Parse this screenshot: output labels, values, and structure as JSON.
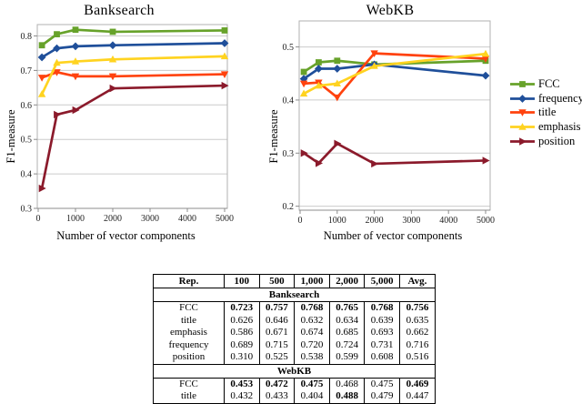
{
  "chart_data": [
    {
      "type": "line",
      "title": "Banksearch",
      "ylabel": "F1-measure",
      "xlabel": "Number of vector components",
      "x": [
        100,
        500,
        1000,
        2000,
        5000
      ],
      "xticks": [
        0,
        1000,
        2000,
        3000,
        4000,
        5000
      ],
      "yticks": [
        0.3,
        0.4,
        0.5,
        0.6,
        0.7,
        0.8
      ],
      "xlim": [
        0,
        5000
      ],
      "ylim": [
        0.3,
        0.833
      ],
      "grid": "horizontal",
      "series": [
        {
          "name": "FCC",
          "color": "#67a22a",
          "marker": "square",
          "values": [
            0.773,
            0.805,
            0.818,
            0.812,
            0.816
          ]
        },
        {
          "name": "frequency",
          "color": "#1f4f9a",
          "marker": "diamond",
          "values": [
            0.738,
            0.764,
            0.77,
            0.773,
            0.779
          ]
        },
        {
          "name": "title",
          "color": "#ff420e",
          "marker": "triangle-down",
          "values": [
            0.679,
            0.695,
            0.683,
            0.683,
            0.689
          ]
        },
        {
          "name": "emphasis",
          "color": "#ffd320",
          "marker": "triangle-up",
          "values": [
            0.631,
            0.722,
            0.726,
            0.732,
            0.741
          ]
        },
        {
          "name": "position",
          "color": "#8b1a2b",
          "marker": "triangle-right",
          "values": [
            0.358,
            0.572,
            0.585,
            0.648,
            0.656
          ]
        }
      ]
    },
    {
      "type": "line",
      "title": "WebKB",
      "ylabel": "F1-measure",
      "xlabel": "Number of vector components",
      "x": [
        100,
        500,
        1000,
        2000,
        5000
      ],
      "xticks": [
        0,
        1000,
        2000,
        3000,
        4000,
        5000
      ],
      "yticks": [
        0.2,
        0.3,
        0.4,
        0.5
      ],
      "xlim": [
        0,
        5000
      ],
      "ylim": [
        0.1925,
        0.549
      ],
      "grid": "horizontal",
      "series": [
        {
          "name": "FCC",
          "color": "#67a22a",
          "marker": "square",
          "values": [
            0.453,
            0.471,
            0.474,
            0.467,
            0.474
          ]
        },
        {
          "name": "frequency",
          "color": "#1f4f9a",
          "marker": "diamond",
          "values": [
            0.44,
            0.459,
            0.459,
            0.467,
            0.446
          ]
        },
        {
          "name": "title",
          "color": "#ff420e",
          "marker": "triangle-down",
          "values": [
            0.431,
            0.433,
            0.405,
            0.488,
            0.478
          ]
        },
        {
          "name": "emphasis",
          "color": "#ffd320",
          "marker": "triangle-up",
          "values": [
            0.412,
            0.427,
            0.431,
            0.464,
            0.487
          ]
        },
        {
          "name": "position",
          "color": "#8b1a2b",
          "marker": "triangle-right",
          "values": [
            0.3,
            0.281,
            0.318,
            0.28,
            0.286
          ]
        }
      ]
    }
  ],
  "legend": {
    "position": "right",
    "items": [
      "FCC",
      "frequency",
      "title",
      "emphasis",
      "position"
    ]
  },
  "table": {
    "columns": [
      "Rep.",
      "100",
      "500",
      "1,000",
      "2,000",
      "5,000",
      "Avg."
    ],
    "sections": [
      {
        "title": "Banksearch",
        "rows": [
          {
            "label": "FCC",
            "values": [
              "0.723",
              "0.757",
              "0.768",
              "0.765",
              "0.768",
              "0.756"
            ],
            "bold": [
              1,
              1,
              1,
              1,
              1,
              1
            ]
          },
          {
            "label": "title",
            "values": [
              "0.626",
              "0.646",
              "0.632",
              "0.634",
              "0.639",
              "0.635"
            ],
            "bold": [
              0,
              0,
              0,
              0,
              0,
              0
            ]
          },
          {
            "label": "emphasis",
            "values": [
              "0.586",
              "0.671",
              "0.674",
              "0.685",
              "0.693",
              "0.662"
            ],
            "bold": [
              0,
              0,
              0,
              0,
              0,
              0
            ]
          },
          {
            "label": "frequency",
            "values": [
              "0.689",
              "0.715",
              "0.720",
              "0.724",
              "0.731",
              "0.716"
            ],
            "bold": [
              0,
              0,
              0,
              0,
              0,
              0
            ]
          },
          {
            "label": "position",
            "values": [
              "0.310",
              "0.525",
              "0.538",
              "0.599",
              "0.608",
              "0.516"
            ],
            "bold": [
              0,
              0,
              0,
              0,
              0,
              0
            ]
          }
        ]
      },
      {
        "title": "WebKB",
        "rows": [
          {
            "label": "FCC",
            "values": [
              "0.453",
              "0.472",
              "0.475",
              "0.468",
              "0.475",
              "0.469"
            ],
            "bold": [
              1,
              1,
              1,
              0,
              0,
              1
            ]
          },
          {
            "label": "title",
            "values": [
              "0.432",
              "0.433",
              "0.404",
              "0.488",
              "0.479",
              "0.447"
            ],
            "bold": [
              0,
              0,
              0,
              1,
              0,
              0
            ]
          }
        ]
      }
    ]
  }
}
